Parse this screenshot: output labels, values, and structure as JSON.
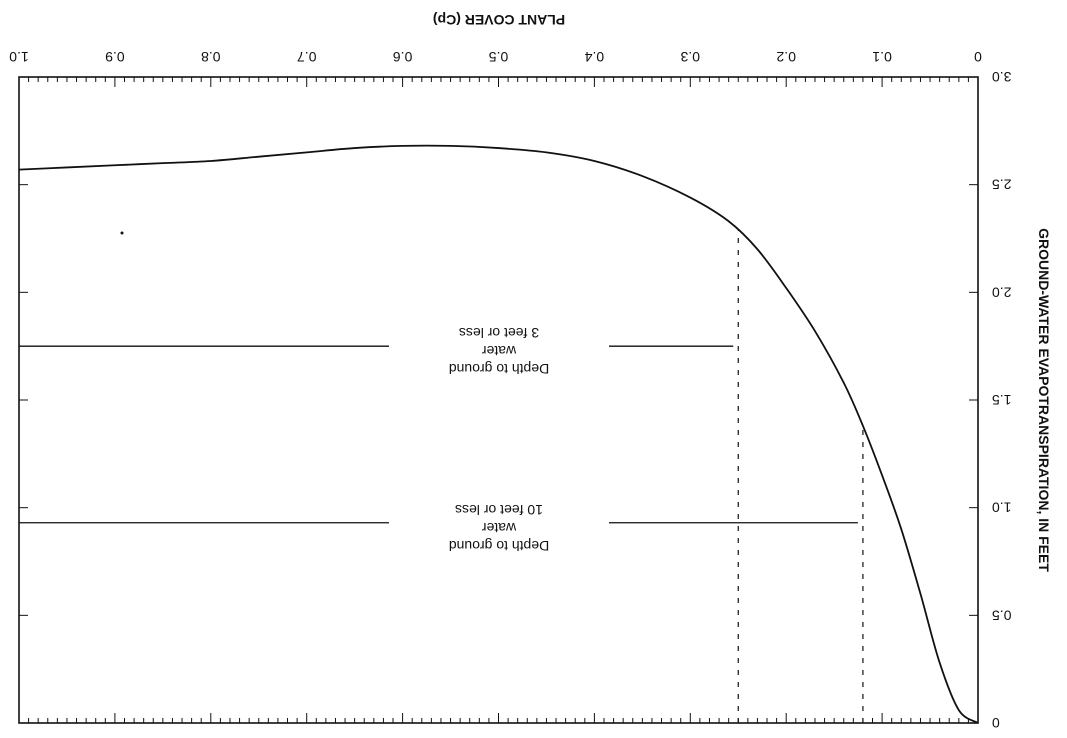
{
  "chart_data": {
    "type": "line",
    "orientation": "rotated 180 degrees (image is upside down)",
    "x_axis": {
      "label": "PLANT COVER (Cp)",
      "range": [
        0,
        1.0
      ],
      "ticks": [
        "0",
        "0.1",
        "0.2",
        "0.3",
        "0.4",
        "0.5",
        "0.6",
        "0.7",
        "0.8",
        "0.9",
        "1.0"
      ]
    },
    "y_axis": {
      "label": "GROUND-WATER EVAPOTRANSPIRATION, IN FEET",
      "range": [
        0,
        3.0
      ],
      "ticks": [
        "0",
        "0.5",
        "1.0",
        "1.5",
        "2.0",
        "2.5",
        "3.0"
      ]
    },
    "series": [
      {
        "name": "",
        "x": [
          0.0,
          0.02,
          0.04,
          0.06,
          0.08,
          0.1,
          0.12,
          0.14,
          0.17,
          0.2,
          0.23,
          0.26,
          0.3,
          0.35,
          0.4,
          0.45,
          0.5,
          0.55,
          0.6,
          0.65,
          0.7,
          0.75,
          0.8,
          0.85,
          0.9,
          0.95,
          1.0
        ],
        "y": [
          0.0,
          0.06,
          0.28,
          0.6,
          0.9,
          1.15,
          1.38,
          1.58,
          1.82,
          2.02,
          2.2,
          2.33,
          2.44,
          2.54,
          2.61,
          2.65,
          2.67,
          2.68,
          2.68,
          2.67,
          2.65,
          2.63,
          2.61,
          2.6,
          2.59,
          2.58,
          2.57
        ]
      }
    ],
    "annotations": [
      {
        "lines": [
          "Depth to ground",
          "water",
          "10 feet or less"
        ],
        "cp": 0.12,
        "y": 0.93
      },
      {
        "lines": [
          "Depth to ground",
          "water",
          "3 feet or less"
        ],
        "cp": 0.25,
        "y": 1.75
      }
    ],
    "grid": false
  }
}
